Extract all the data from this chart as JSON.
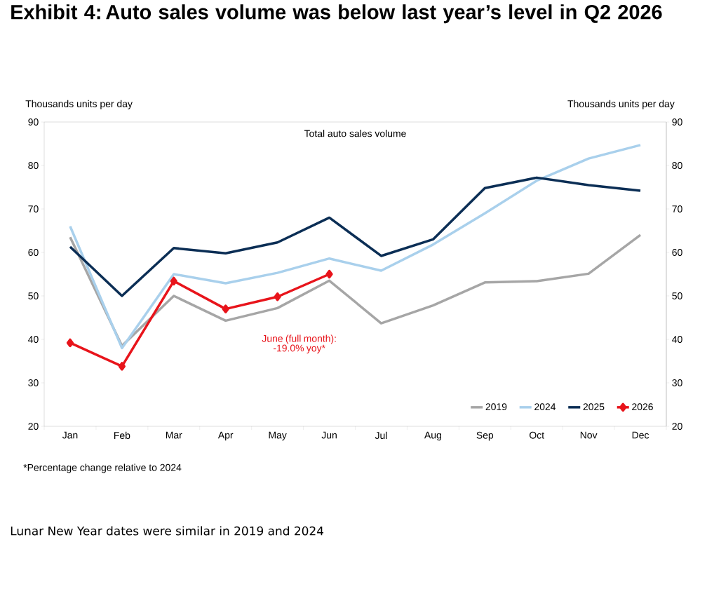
{
  "chart_data": {
    "type": "line",
    "title": "Exhibit 4: Auto sales volume was below last year’s level in Q2 2026",
    "subtitle": "Total auto sales volume",
    "ylabel": "Thousands units per day",
    "y2label": "Thousands units per day",
    "categories": [
      "Jan",
      "Feb",
      "Mar",
      "Apr",
      "May",
      "Jun",
      "Jul",
      "Aug",
      "Sep",
      "Oct",
      "Nov",
      "Dec"
    ],
    "series": [
      {
        "name": "2019",
        "color": "#a6a6a6",
        "values": [
          63.5,
          38.5,
          50,
          44.3,
          47.2,
          53.5,
          43.7,
          47.8,
          53.1,
          53.4,
          55.1,
          64
        ]
      },
      {
        "name": "2024",
        "color": "#a9d0ec",
        "values": [
          66,
          38,
          55,
          52.9,
          55.3,
          58.6,
          55.8,
          61.8,
          69,
          76.5,
          81.6,
          84.7
        ]
      },
      {
        "name": "2025",
        "color": "#0b2e55",
        "values": [
          61.3,
          50,
          61,
          59.8,
          62.3,
          68,
          59.2,
          63,
          74.8,
          77.2,
          75.5,
          74.2
        ]
      },
      {
        "name": "2026",
        "color": "#e8141b",
        "marker": "diamond",
        "values": [
          39.2,
          33.8,
          53.4,
          47,
          49.8,
          55,
          null,
          null,
          null,
          null,
          null,
          null
        ]
      }
    ],
    "ylim": [
      20,
      90
    ],
    "yticks": [
      20,
      30,
      40,
      50,
      60,
      70,
      80,
      90
    ],
    "y2lim": [
      20,
      90
    ],
    "y2ticks": [
      20,
      30,
      40,
      50,
      60,
      70,
      80,
      90
    ],
    "legend": "bottom right",
    "grid": false,
    "annotations": [
      "June (full month): -19.0% yoy*",
      "*Percentage change relative to 2024",
      "Lunar New Year dates were similar in 2019 and 2024"
    ]
  }
}
